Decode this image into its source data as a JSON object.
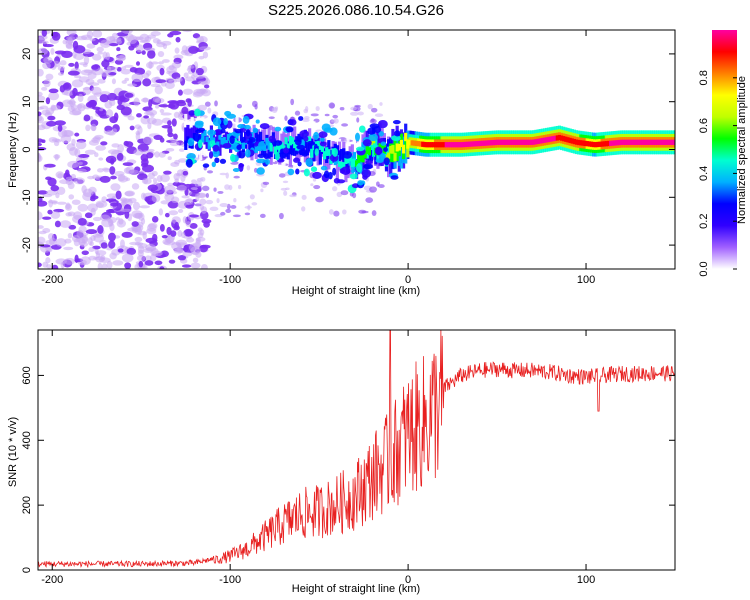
{
  "title": "S225.2026.086.10.54.G26",
  "chart_data": [
    {
      "type": "heatmap",
      "name": "spectrogram",
      "xlabel": "Height of straight line (km)",
      "ylabel": "Frequency (Hz)",
      "xlim": [
        -208,
        150
      ],
      "ylim": [
        -25,
        25
      ],
      "xticks": [
        -200,
        -100,
        0,
        100
      ],
      "yticks": [
        -20,
        -10,
        0,
        10,
        20
      ],
      "colorbar": {
        "label": "Normalized spectral amplitude",
        "range": [
          0,
          1
        ],
        "ticks": [
          "0.0",
          "0.2",
          "0.4",
          "0.6",
          "0.8"
        ],
        "colors": [
          "#ffffff",
          "#a060ff",
          "#3000ff",
          "#0000ff",
          "#00b0ff",
          "#00ffd0",
          "#00ff00",
          "#c0ff00",
          "#ffff00",
          "#ff8000",
          "#ff0000",
          "#ff00a0"
        ]
      },
      "ridge": {
        "x": [
          -125,
          -110,
          -100,
          -90,
          -80,
          -70,
          -60,
          -50,
          -40,
          -30,
          -25,
          -20,
          -15,
          -10,
          0,
          10,
          30,
          50,
          70,
          85,
          95,
          105,
          120,
          150
        ],
        "y": [
          2,
          2,
          1.5,
          2,
          1,
          0.5,
          1.5,
          0,
          -2,
          -3,
          -1,
          1,
          0,
          -1,
          1.5,
          1,
          1,
          1.5,
          1.5,
          2.5,
          1.5,
          1,
          1.5,
          1.5
        ],
        "amplitude": [
          0.25,
          0.3,
          0.3,
          0.35,
          0.35,
          0.4,
          0.35,
          0.4,
          0.35,
          0.45,
          0.5,
          0.55,
          0.5,
          0.6,
          0.7,
          0.85,
          0.95,
          0.95,
          0.95,
          0.9,
          0.9,
          0.85,
          0.95,
          0.95
        ]
      }
    },
    {
      "type": "line",
      "name": "snr",
      "xlabel": "Height of straight line (km)",
      "ylabel": "SNR (10 * v/v)",
      "xlim": [
        -208,
        150
      ],
      "ylim": [
        0,
        740
      ],
      "xticks": [
        -200,
        -100,
        0,
        100
      ],
      "yticks": [
        0,
        200,
        400,
        600
      ],
      "color": "#e82020",
      "series": [
        {
          "name": "SNR",
          "x": [
            -208,
            -150,
            -120,
            -110,
            -100,
            -90,
            -80,
            -70,
            -60,
            -50,
            -40,
            -30,
            -20,
            -15,
            -10,
            -5,
            0,
            10,
            20,
            30,
            40,
            50,
            60,
            70,
            80,
            90,
            100,
            110,
            120,
            130,
            140,
            150
          ],
          "y": [
            15,
            15,
            18,
            30,
            45,
            70,
            110,
            150,
            180,
            190,
            210,
            240,
            300,
            330,
            350,
            400,
            440,
            480,
            560,
            600,
            615,
            620,
            615,
            615,
            610,
            600,
            595,
            600,
            605,
            605,
            608,
            605
          ]
        }
      ],
      "peaks": [
        {
          "x": -10,
          "y": 740
        },
        {
          "x": 107,
          "y": 490
        }
      ]
    }
  ]
}
